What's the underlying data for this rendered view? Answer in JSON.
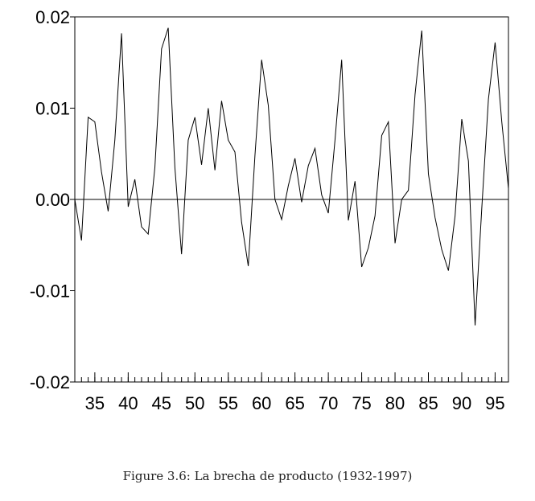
{
  "caption": "Figure 3.6: La brecha de producto (1932-1997)",
  "chart_data": {
    "type": "line",
    "title": "",
    "xlabel": "",
    "ylabel": "",
    "xlim": [
      1932,
      1997
    ],
    "ylim": [
      -0.02,
      0.02
    ],
    "yticks": [
      0.02,
      0.01,
      0.0,
      -0.01,
      -0.02
    ],
    "ytick_labels": [
      "0.02",
      "0.01",
      "0.00",
      "-0.01",
      "-0.02"
    ],
    "xticks": [
      1935,
      1940,
      1945,
      1950,
      1955,
      1960,
      1965,
      1970,
      1975,
      1980,
      1985,
      1990,
      1995
    ],
    "xtick_labels": [
      "35",
      "40",
      "45",
      "50",
      "55",
      "60",
      "65",
      "70",
      "75",
      "80",
      "85",
      "90",
      "95"
    ],
    "zero_line": true,
    "grid": false,
    "line_color": "#000000",
    "series": [
      {
        "x": [
          1932,
          1933,
          1934,
          1935,
          1936,
          1937,
          1938,
          1939,
          1940,
          1941,
          1942,
          1943,
          1944,
          1945,
          1946,
          1947,
          1948,
          1949,
          1950,
          1951,
          1952,
          1953,
          1954,
          1955,
          1956,
          1957,
          1958,
          1959,
          1960,
          1961,
          1962,
          1963,
          1964,
          1965,
          1966,
          1967,
          1968,
          1969,
          1970,
          1971,
          1972,
          1973,
          1974,
          1975,
          1976,
          1977,
          1978,
          1979,
          1980,
          1981,
          1982,
          1983,
          1984,
          1985,
          1986,
          1987,
          1988,
          1989,
          1990,
          1991,
          1992,
          1993,
          1994,
          1995,
          1996,
          1997
        ],
        "y": [
          0.0,
          -0.0045,
          0.009,
          0.0085,
          0.003,
          -0.0013,
          0.0065,
          0.0182,
          -0.0008,
          0.0022,
          -0.003,
          -0.0038,
          0.0035,
          0.0165,
          0.0188,
          0.0035,
          -0.006,
          0.0065,
          0.009,
          0.0038,
          0.01,
          0.0032,
          0.0108,
          0.0065,
          0.0052,
          -0.0025,
          -0.0073,
          0.0048,
          0.0153,
          0.0103,
          0.0,
          -0.0022,
          0.0015,
          0.0045,
          -0.0003,
          0.0037,
          0.0056,
          0.0005,
          -0.0015,
          0.0065,
          0.0153,
          -0.0023,
          0.002,
          -0.0074,
          -0.0053,
          -0.0018,
          0.007,
          0.0085,
          -0.0048,
          0.0,
          0.001,
          0.0115,
          0.0185,
          0.0028,
          -0.002,
          -0.0055,
          -0.0078,
          -0.0018,
          0.0088,
          0.0042,
          -0.0138,
          -0.001,
          0.011,
          0.0172,
          0.0085,
          0.0012
        ]
      }
    ]
  }
}
